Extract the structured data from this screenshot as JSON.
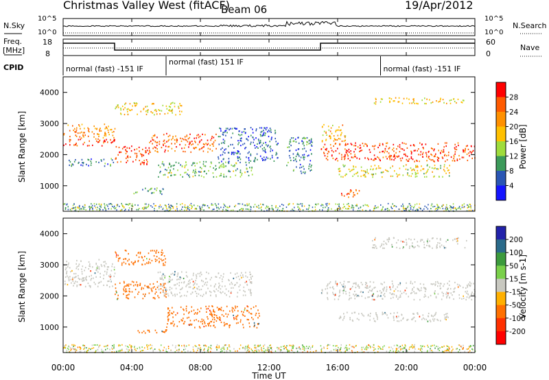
{
  "header": {
    "title": "Christmas Valley West (fitACF)",
    "beam": "Beam 06",
    "date": "19/Apr/2012"
  },
  "top_panels": {
    "nsky_label": "N.Sky",
    "nsky_ticks": [
      "10^5",
      "10^0"
    ],
    "nsearch_label": "N.Search",
    "nsearch_ticks": [
      "10^5",
      "10^0"
    ],
    "freq_label": "Freq.",
    "freq_unit": "[MHz]",
    "freq_ticks": [
      "18",
      "8"
    ],
    "nave_label": "Nave",
    "nave_ticks": [
      "60",
      "0"
    ],
    "cpid_label": "CPID",
    "cpid_segments": [
      {
        "label": "normal (fast) -151 IF",
        "start_h": 0,
        "end_h": 6
      },
      {
        "label": "normal (fast) 151 IF",
        "start_h": 6,
        "end_h": 18.5
      },
      {
        "label": "normal (fast) -151 IF",
        "start_h": 18.5,
        "end_h": 24
      }
    ]
  },
  "axes": {
    "ylabel": "Slant Range [km]",
    "y_ticks": [
      "4000",
      "3000",
      "2000",
      "1000"
    ],
    "xlabel": "Time UT",
    "x_ticks": [
      "00:00",
      "04:00",
      "08:00",
      "12:00",
      "16:00",
      "20:00",
      "00:00"
    ]
  },
  "power_colorbar": {
    "label": "Power [dB]",
    "ticks": [
      "28",
      "24",
      "20",
      "16",
      "12",
      "8",
      "4"
    ],
    "colors": [
      "#ff0000",
      "#ff5a00",
      "#ff9000",
      "#ffc000",
      "#9fdc3c",
      "#3c9a5a",
      "#2a56b4",
      "#1414ff"
    ]
  },
  "velocity_colorbar": {
    "label": "Velocity [m s-1]",
    "ticks": [
      "200",
      "100",
      "50",
      "15",
      "-15",
      "-50",
      "-100",
      "-200"
    ],
    "colors": [
      "#2222aa",
      "#2a6a8a",
      "#3c9a3c",
      "#7ad04a",
      "#c8c8c0",
      "#ffb000",
      "#ff7000",
      "#ff3000",
      "#ff0000"
    ]
  },
  "chart_data": {
    "type": "heatmap",
    "x_range_hours": [
      0,
      24
    ],
    "y_range_km": [
      180,
      4500
    ],
    "power_bands": [
      {
        "t0": 0.0,
        "t1": 3.0,
        "r0": 2550,
        "r1": 3000,
        "power": 22
      },
      {
        "t0": 0.0,
        "t1": 3.0,
        "r0": 2300,
        "r1": 2550,
        "power": 27
      },
      {
        "t0": 0.3,
        "t1": 3.0,
        "r0": 1650,
        "r1": 1900,
        "power": 8
      },
      {
        "t0": 3.0,
        "t1": 5.0,
        "r0": 1700,
        "r1": 2300,
        "power": 27
      },
      {
        "t0": 5.0,
        "t1": 9.0,
        "r0": 2100,
        "r1": 2700,
        "power": 26
      },
      {
        "t0": 3.0,
        "t1": 7.0,
        "r0": 3300,
        "r1": 3700,
        "power": 18
      },
      {
        "t0": 5.5,
        "t1": 11.0,
        "r0": 1300,
        "r1": 1800,
        "power": 12
      },
      {
        "t0": 4.0,
        "t1": 6.0,
        "r0": 750,
        "r1": 950,
        "power": 10
      },
      {
        "t0": 9.0,
        "t1": 12.5,
        "r0": 1800,
        "r1": 2900,
        "power": 6
      },
      {
        "t0": 13.0,
        "t1": 14.5,
        "r0": 1400,
        "r1": 2600,
        "power": 8
      },
      {
        "t0": 15.0,
        "t1": 24.0,
        "r0": 1800,
        "r1": 2400,
        "power": 27
      },
      {
        "t0": 15.0,
        "t1": 16.5,
        "r0": 2400,
        "r1": 3000,
        "power": 20
      },
      {
        "t0": 16.0,
        "t1": 22.5,
        "r0": 1300,
        "r1": 1700,
        "power": 16
      },
      {
        "t0": 16.2,
        "t1": 17.5,
        "r0": 650,
        "r1": 900,
        "power": 27
      },
      {
        "t0": 18.0,
        "t1": 23.5,
        "r0": 3650,
        "r1": 3850,
        "power": 18
      }
    ],
    "velocity_bands": [
      {
        "t0": 0.0,
        "t1": 3.0,
        "r0": 2300,
        "r1": 3200,
        "velocity": 0
      },
      {
        "t0": 3.0,
        "t1": 6.0,
        "r0": 3000,
        "r1": 3500,
        "velocity": -60
      },
      {
        "t0": 3.0,
        "t1": 6.0,
        "r0": 1900,
        "r1": 2500,
        "velocity": -60
      },
      {
        "t0": 5.5,
        "t1": 11.0,
        "r0": 2000,
        "r1": 2800,
        "velocity": 0
      },
      {
        "t0": 6.0,
        "t1": 11.5,
        "r0": 1000,
        "r1": 1700,
        "velocity": -60
      },
      {
        "t0": 4.0,
        "t1": 6.0,
        "r0": 800,
        "r1": 950,
        "velocity": -60
      },
      {
        "t0": 15.0,
        "t1": 24.0,
        "r0": 1900,
        "r1": 2500,
        "velocity": 0
      },
      {
        "t0": 16.0,
        "t1": 22.5,
        "r0": 1200,
        "r1": 1500,
        "velocity": 0
      },
      {
        "t0": 18.0,
        "t1": 23.5,
        "r0": 3550,
        "r1": 3900,
        "velocity": 0
      }
    ]
  }
}
